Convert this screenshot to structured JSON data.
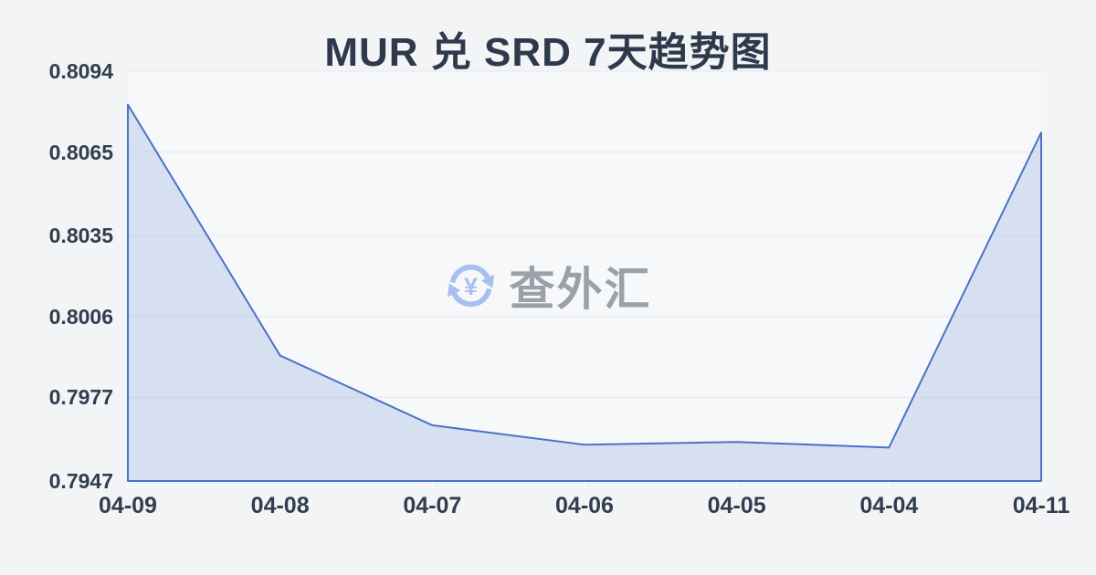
{
  "page": {
    "background": "#f2f4f6"
  },
  "chart_data": {
    "type": "area",
    "title": "MUR 兑 SRD 7天趋势图",
    "categories": [
      "04-09",
      "04-08",
      "04-07",
      "04-06",
      "04-05",
      "04-04",
      "04-11"
    ],
    "values": [
      0.8082,
      0.7992,
      0.7967,
      0.796,
      0.7961,
      0.7959,
      0.8072
    ],
    "yticks": [
      0.8094,
      0.8065,
      0.8035,
      0.8006,
      0.7977,
      0.7947
    ],
    "ylim": [
      0.7947,
      0.8094
    ],
    "xlabel": "",
    "ylabel": "",
    "grid": true,
    "legend": false,
    "line_color": "#4a73c5",
    "fill_color": "rgba(74,115,197,0.18)",
    "grid_color": "#e7e9ec",
    "plot_bg": "#f7f8fa",
    "tick_color": "#fafbfd",
    "axis_label_color": "#323e4e",
    "title_color": "#2e3a4c"
  },
  "watermark": {
    "text": "查外汇",
    "yen_symbol": "¥",
    "icon": "currency-exchange-icon",
    "icon_color": "#a7c0f0",
    "text_color": "#9aa1a9"
  }
}
